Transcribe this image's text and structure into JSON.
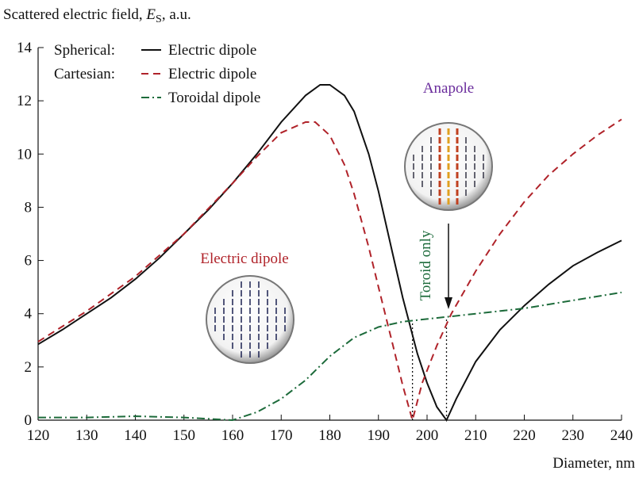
{
  "chart_data": {
    "type": "line",
    "title_parts": [
      "Scattered electric field, ",
      "E",
      "S",
      ", a.u."
    ],
    "x_label": "Diameter, nm",
    "xlim": [
      120,
      240
    ],
    "xticks": [
      120,
      130,
      140,
      150,
      160,
      170,
      180,
      190,
      200,
      210,
      220,
      230,
      240
    ],
    "ylim": [
      0,
      14
    ],
    "yticks": [
      0,
      2,
      4,
      6,
      8,
      10,
      12,
      14
    ],
    "series": [
      {
        "name": "Electric dipole",
        "legend_group": "Spherical:",
        "color": "#111111",
        "dash": "solid",
        "x": [
          120,
          125,
          130,
          135,
          140,
          145,
          150,
          155,
          160,
          165,
          170,
          175,
          178,
          180,
          183,
          185,
          188,
          190,
          193,
          195,
          198,
          200,
          202,
          204,
          206,
          210,
          215,
          220,
          225,
          230,
          235,
          240
        ],
        "values": [
          2.85,
          3.4,
          4.0,
          4.6,
          5.3,
          6.1,
          7.0,
          7.9,
          8.9,
          10.0,
          11.2,
          12.2,
          12.6,
          12.6,
          12.2,
          11.6,
          10.0,
          8.6,
          6.2,
          4.6,
          2.5,
          1.4,
          0.5,
          0.0,
          0.8,
          2.2,
          3.4,
          4.3,
          5.1,
          5.8,
          6.3,
          6.75
        ]
      },
      {
        "name": "Electric dipole",
        "legend_group": "Cartesian:",
        "color": "#b0232a",
        "dash": "dashed",
        "x": [
          120,
          130,
          140,
          150,
          160,
          165,
          170,
          175,
          177,
          180,
          183,
          185,
          188,
          190,
          193,
          195,
          197,
          199,
          202,
          205,
          210,
          215,
          220,
          225,
          230,
          235,
          240
        ],
        "values": [
          2.95,
          4.1,
          5.4,
          7.0,
          8.9,
          9.9,
          10.8,
          11.2,
          11.2,
          10.7,
          9.6,
          8.5,
          6.5,
          5.0,
          2.8,
          1.3,
          0.0,
          1.4,
          2.8,
          4.0,
          5.6,
          7.0,
          8.2,
          9.2,
          10.0,
          10.7,
          11.3
        ]
      },
      {
        "name": "Toroidal dipole",
        "color": "#1d6b3b",
        "dash": "dashdot",
        "x": [
          120,
          130,
          140,
          150,
          155,
          160,
          165,
          170,
          175,
          180,
          185,
          190,
          195,
          200,
          205,
          210,
          220,
          230,
          240
        ],
        "values": [
          0.1,
          0.1,
          0.15,
          0.1,
          0.05,
          0.0,
          0.3,
          0.8,
          1.5,
          2.4,
          3.1,
          3.5,
          3.7,
          3.8,
          3.9,
          4.0,
          4.2,
          4.5,
          4.8
        ]
      }
    ],
    "vlines": [
      {
        "x": 197,
        "y": 3.7
      },
      {
        "x": 204,
        "y": 3.85
      }
    ],
    "annotations": [
      "Electric dipole",
      "Anapole",
      "Toroid only"
    ]
  }
}
